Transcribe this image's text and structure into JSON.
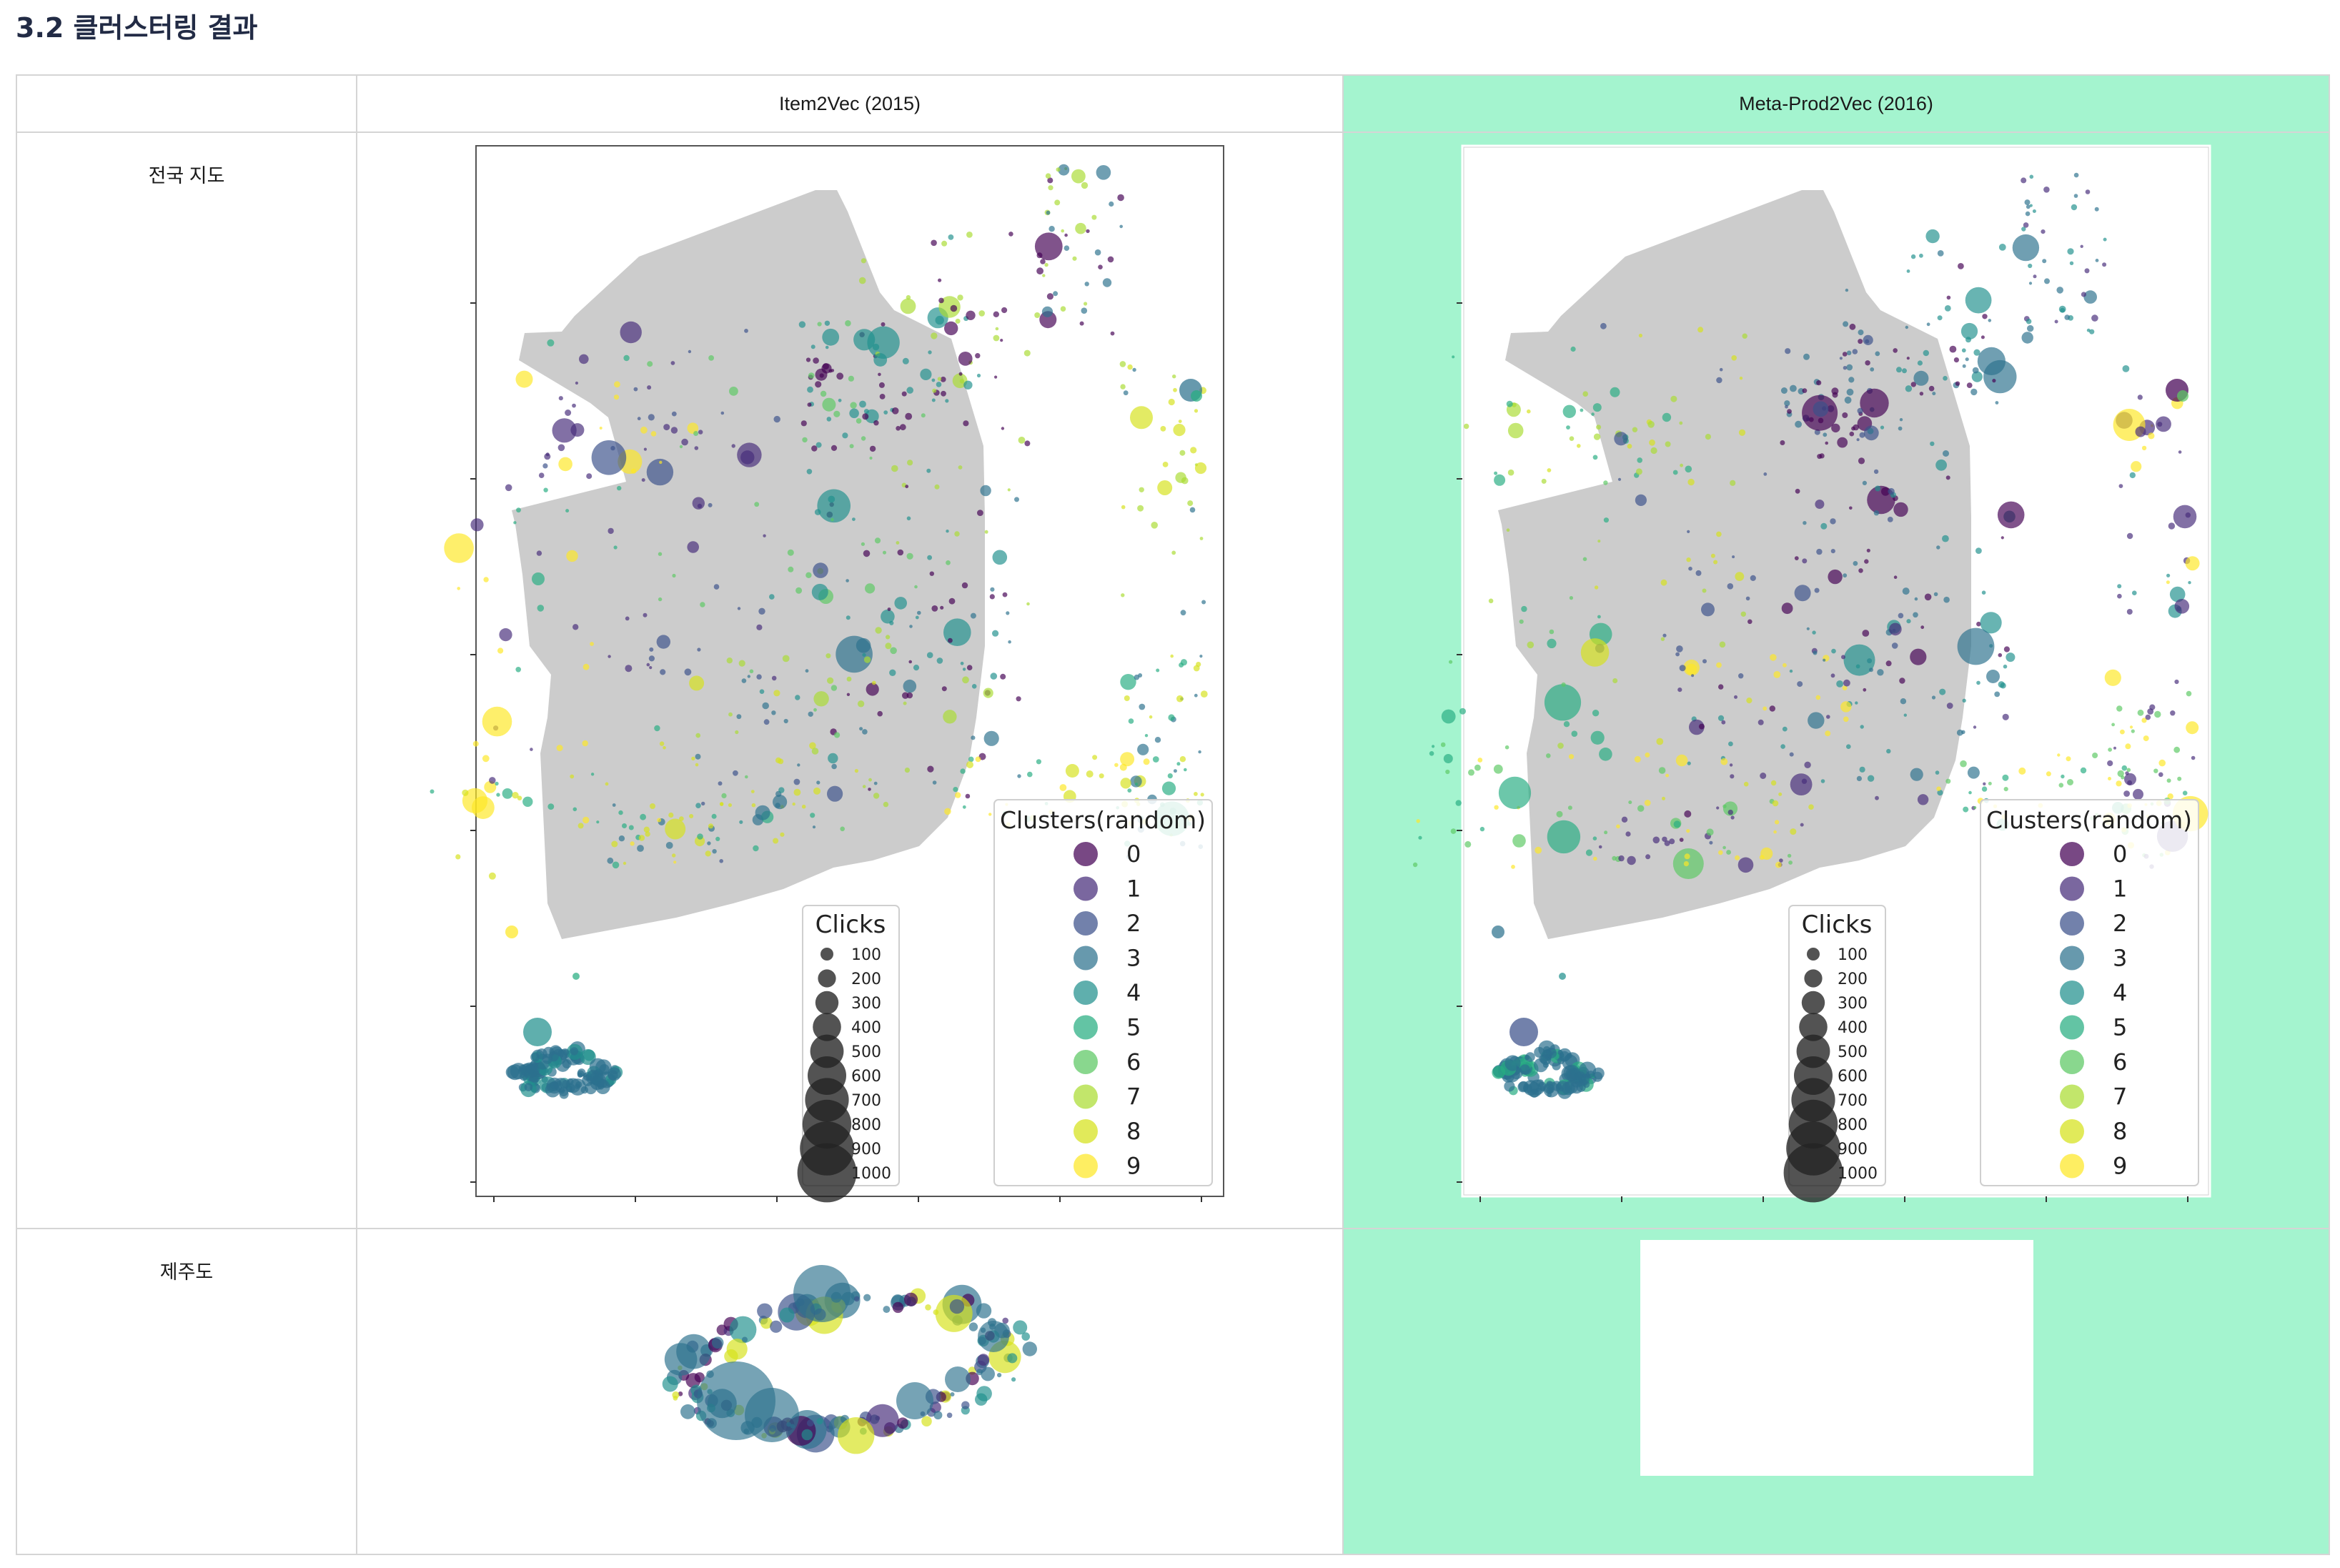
{
  "page": {
    "heading": "3.2 클러스터링 결과"
  },
  "table": {
    "columns": [
      "",
      "Item2Vec (2015)",
      "Meta-Prod2Vec (2016)"
    ],
    "rows": [
      "전국 지도",
      "제주도"
    ]
  },
  "colors": {
    "highlight": "#a4f4cf",
    "land": "#cccccc",
    "palette": [
      "#440154",
      "#472c7a",
      "#3b518b",
      "#2c718e",
      "#21908d",
      "#27ad81",
      "#5cc863",
      "#aadc32",
      "#d5e21a",
      "#fde725"
    ]
  },
  "chart_data": [
    {
      "type": "scatter",
      "title": "",
      "method": "Item2Vec (2015)",
      "region": "전국 지도",
      "legend_color_title": "Clusters(random)",
      "clusters": [
        "0",
        "1",
        "2",
        "3",
        "4",
        "5",
        "6",
        "7",
        "8",
        "9"
      ],
      "legend_size_title": "Clicks",
      "sizes": [
        "100",
        "200",
        "300",
        "400",
        "500",
        "600",
        "700",
        "800",
        "900",
        "1000"
      ],
      "legend_position": "lower right",
      "axes_visible": "ticks only, no tick labels"
    },
    {
      "type": "scatter",
      "title": "",
      "method": "Meta-Prod2Vec (2016)",
      "region": "전국 지도",
      "legend_color_title": "Clusters(random)",
      "clusters": [
        "0",
        "1",
        "2",
        "3",
        "4",
        "5",
        "6",
        "7",
        "8",
        "9"
      ],
      "legend_size_title": "Clicks",
      "sizes": [
        "100",
        "200",
        "300",
        "400",
        "500",
        "600",
        "700",
        "800",
        "900",
        "1000"
      ],
      "legend_position": "lower right",
      "axes_visible": "ticks only, no tick labels"
    },
    {
      "type": "scatter",
      "method": "Item2Vec (2015)",
      "region": "제주도",
      "axes_visible": "none"
    },
    {
      "type": "scatter",
      "method": "Meta-Prod2Vec (2016)",
      "region": "제주도",
      "axes_visible": "none"
    }
  ]
}
